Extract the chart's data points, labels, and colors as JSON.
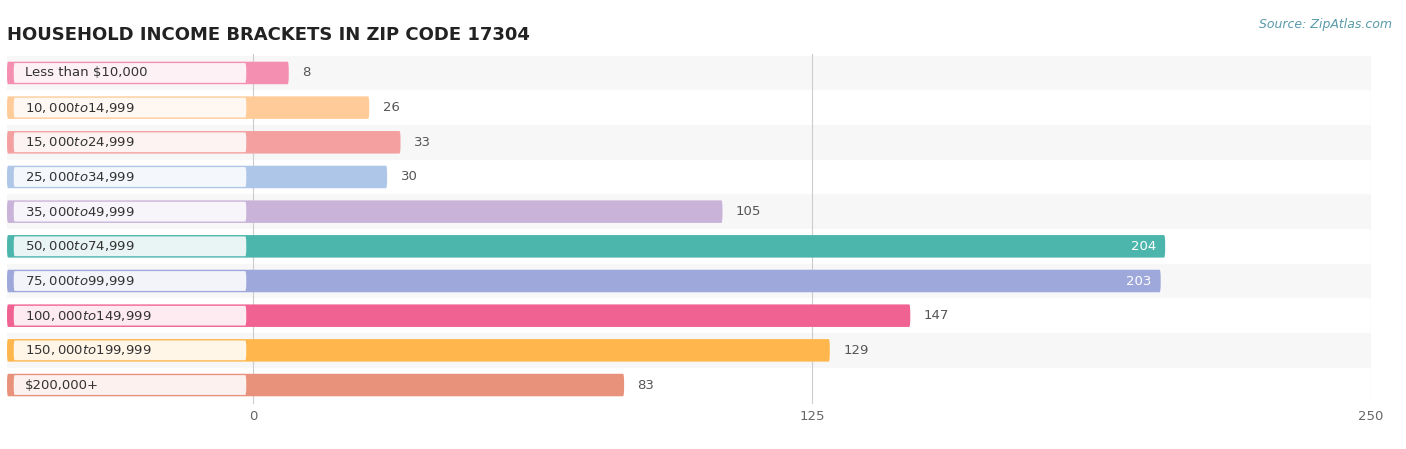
{
  "title": "HOUSEHOLD INCOME BRACKETS IN ZIP CODE 17304",
  "source_text": "Source: ZipAtlas.com",
  "categories": [
    "Less than $10,000",
    "$10,000 to $14,999",
    "$15,000 to $24,999",
    "$25,000 to $34,999",
    "$35,000 to $49,999",
    "$50,000 to $74,999",
    "$75,000 to $99,999",
    "$100,000 to $149,999",
    "$150,000 to $199,999",
    "$200,000+"
  ],
  "values": [
    8,
    26,
    33,
    30,
    105,
    204,
    203,
    147,
    129,
    83
  ],
  "bar_colors": [
    "#f48fb1",
    "#ffcc99",
    "#f4a0a0",
    "#aec6e8",
    "#c9b3d9",
    "#4db6ac",
    "#9fa8da",
    "#f06292",
    "#ffb74d",
    "#e8927c"
  ],
  "bg_color": "#ffffff",
  "row_bg_even": "#f7f7f7",
  "row_bg_odd": "#ffffff",
  "xlim_min": -55,
  "xlim_max": 250,
  "xticks": [
    0,
    125,
    250
  ],
  "title_fontsize": 13,
  "label_fontsize": 9.5,
  "value_fontsize": 9.5,
  "source_fontsize": 9,
  "bar_height": 0.65,
  "value_white_threshold": 150
}
